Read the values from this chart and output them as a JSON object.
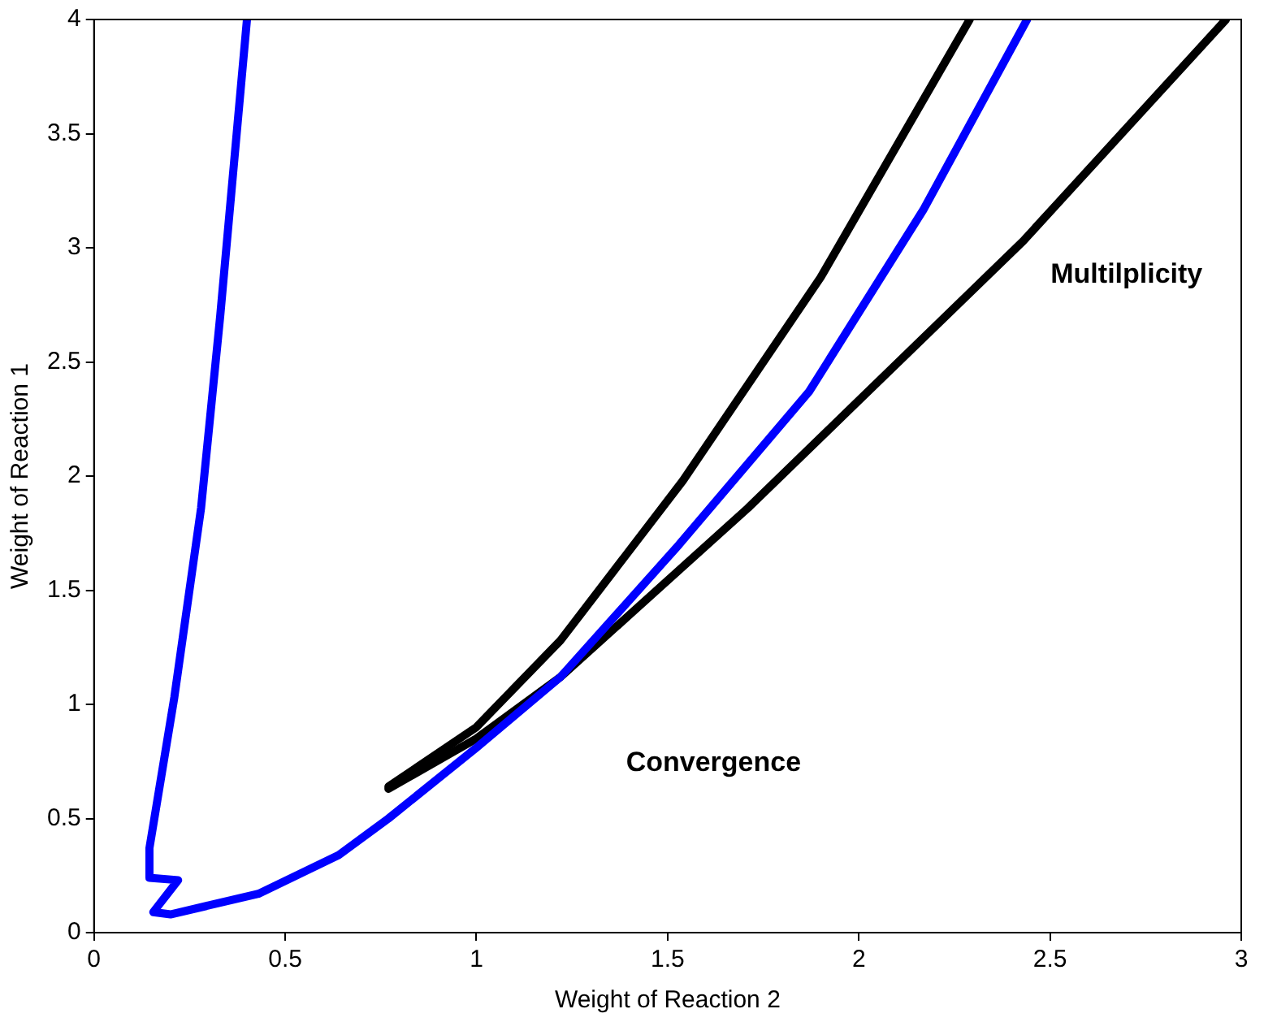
{
  "chart_data": {
    "type": "line",
    "xlabel": "Weight of Reaction 2",
    "ylabel": "Weight of Reaction 1",
    "xlim": [
      0,
      3
    ],
    "ylim": [
      0,
      4
    ],
    "xticks": [
      0,
      0.5,
      1,
      1.5,
      2,
      2.5,
      3
    ],
    "yticks": [
      0,
      0.5,
      1,
      1.5,
      2,
      2.5,
      3,
      3.5,
      4
    ],
    "grid": false,
    "legend": false,
    "marker": "none",
    "line_style": "solid",
    "series": [
      {
        "color": "#0000ff",
        "x": [
          0.4,
          0.33,
          0.28,
          0.21,
          0.145,
          0.145,
          0.22,
          0.155,
          0.2,
          0.43,
          0.64,
          0.77,
          1.0,
          1.22,
          1.53,
          1.87,
          2.17,
          2.44
        ],
        "values": [
          4,
          2.7,
          1.86,
          1.03,
          0.37,
          0.24,
          0.23,
          0.09,
          0.08,
          0.17,
          0.34,
          0.5,
          0.81,
          1.12,
          1.7,
          2.37,
          3.17,
          4
        ]
      },
      {
        "color": "#000000",
        "x": [
          0.77,
          1.0,
          1.22,
          1.54,
          1.9,
          2.29
        ],
        "values": [
          0.64,
          0.9,
          1.28,
          1.98,
          2.87,
          4
        ]
      },
      {
        "color": "#000000",
        "x": [
          0.77,
          1.0,
          1.22,
          1.71,
          2.43,
          2.96
        ],
        "values": [
          0.63,
          0.85,
          1.12,
          1.86,
          3.03,
          4
        ]
      }
    ],
    "annotations": [
      "Multilplicity",
      "Convergence"
    ]
  }
}
